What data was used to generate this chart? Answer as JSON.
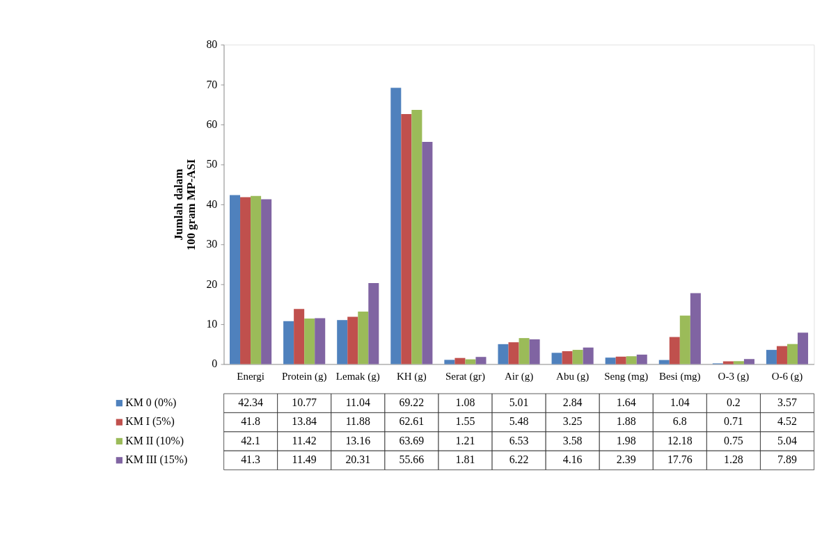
{
  "chart_data": {
    "type": "bar",
    "ylabel": "Jumlah dalam\n100 gram MP-ASI",
    "categories": [
      "Energi",
      "Protein (g)",
      "Lemak (g)",
      "KH (g)",
      "Serat (gr)",
      "Air (g)",
      "Abu (g)",
      "Seng (mg)",
      "Besi (mg)",
      "O-3 (g)",
      "O-6 (g)"
    ],
    "series": [
      {
        "name": "KM 0 (0%)",
        "color": "#4f81bd",
        "values": [
          42.34,
          10.77,
          11.04,
          69.22,
          1.08,
          5.01,
          2.84,
          1.64,
          1.04,
          0.2,
          3.57
        ]
      },
      {
        "name": "KM I (5%)",
        "color": "#c0504d",
        "values": [
          41.8,
          13.84,
          11.88,
          62.61,
          1.55,
          5.48,
          3.25,
          1.88,
          6.8,
          0.71,
          4.52
        ]
      },
      {
        "name": "KM II (10%)",
        "color": "#9bbb59",
        "values": [
          42.1,
          11.42,
          13.16,
          63.69,
          1.21,
          6.53,
          3.58,
          1.98,
          12.18,
          0.75,
          5.04
        ]
      },
      {
        "name": "KM III (15%)",
        "color": "#8064a2",
        "values": [
          41.3,
          11.49,
          20.31,
          55.66,
          1.81,
          6.22,
          4.16,
          2.39,
          17.76,
          1.28,
          7.89
        ]
      }
    ],
    "ylim": [
      0,
      80
    ],
    "yticks": [
      0,
      10,
      20,
      30,
      40,
      50,
      60,
      70,
      80
    ],
    "grid": false,
    "legend": "bottom",
    "data_labels": true
  }
}
